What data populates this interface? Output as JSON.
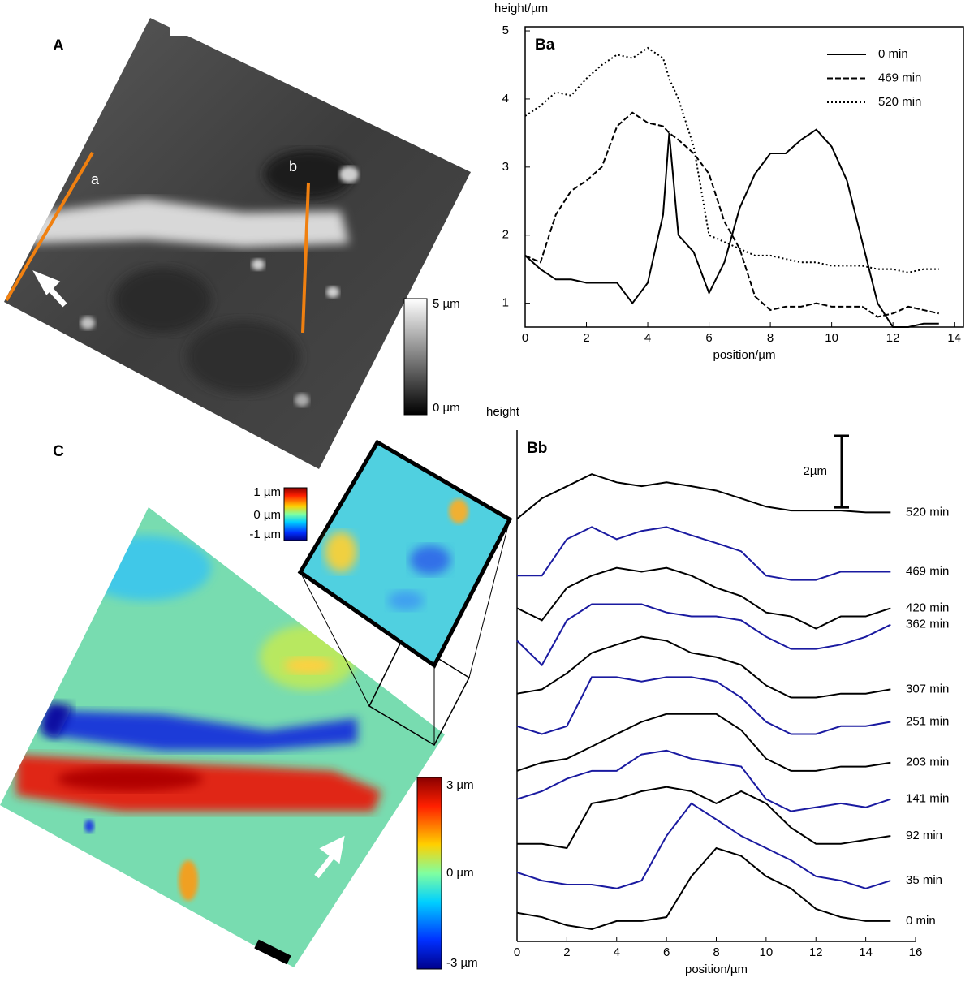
{
  "panel_a": {
    "label": "A",
    "lines": [
      "a",
      "b"
    ],
    "colorbar": [
      "5 µm",
      "0 µm"
    ]
  },
  "panel_c": {
    "label": "C",
    "inset_colorbar": [
      "1 µm",
      "0 µm",
      "-1 µm"
    ],
    "colorbar": [
      "3 µm",
      "0 µm",
      "-3 µm"
    ]
  },
  "chart_data": [
    {
      "type": "line",
      "title": "Ba",
      "y_label": "height/µm",
      "x_label": "position/µm",
      "frame": true,
      "legend": "upper right",
      "x": [
        0,
        0.5,
        1,
        1.5,
        2,
        2.5,
        3,
        3.5,
        4,
        4.5,
        4.7,
        5,
        5.5,
        6,
        6.5,
        7,
        7.5,
        8,
        8.5,
        9,
        9.5,
        10,
        10.5,
        11,
        11.5,
        12,
        12.5,
        13,
        13.5
      ],
      "xlim": [
        0,
        14.3
      ],
      "xticks": [
        0,
        2,
        4,
        6,
        8,
        10,
        12,
        14
      ],
      "ylim": [
        0.65,
        5.06
      ],
      "yticks": [
        1,
        2,
        3,
        4,
        5
      ],
      "series": [
        {
          "name": "0 min",
          "color": "#000000",
          "dash": "solid",
          "values": [
            1.7,
            1.5,
            1.35,
            1.35,
            1.3,
            1.3,
            1.3,
            1.0,
            1.3,
            2.3,
            3.5,
            2.0,
            1.75,
            1.15,
            1.6,
            2.4,
            2.9,
            3.2,
            3.2,
            3.4,
            3.55,
            3.3,
            2.8,
            1.9,
            1.0,
            0.65,
            0.65,
            0.7,
            0.7
          ]
        },
        {
          "name": "469 min",
          "color": "#000000",
          "dash": "dashed",
          "values": [
            1.7,
            1.6,
            2.3,
            2.65,
            2.8,
            3.0,
            3.6,
            3.8,
            3.65,
            3.6,
            3.5,
            3.4,
            3.2,
            2.9,
            2.2,
            1.8,
            1.1,
            0.9,
            0.95,
            0.95,
            1.0,
            0.95,
            0.95,
            0.95,
            0.8,
            0.85,
            0.95,
            0.9,
            0.85
          ]
        },
        {
          "name": "520 min",
          "color": "#000000",
          "dash": "dotted",
          "values": [
            3.75,
            3.9,
            4.1,
            4.05,
            4.3,
            4.5,
            4.65,
            4.6,
            4.75,
            4.6,
            4.3,
            4.0,
            3.3,
            2.0,
            1.9,
            1.8,
            1.7,
            1.7,
            1.65,
            1.6,
            1.6,
            1.55,
            1.55,
            1.55,
            1.5,
            1.5,
            1.45,
            1.5,
            1.5
          ]
        }
      ]
    },
    {
      "type": "line",
      "title": "Bb",
      "y_label": "height",
      "x_label": "position/µm",
      "frame": false,
      "legend": "line end",
      "x": [
        0,
        1,
        2,
        3,
        4,
        5,
        6,
        7,
        8,
        9,
        10,
        11,
        12,
        13,
        14,
        15
      ],
      "xlim": [
        0,
        16
      ],
      "xticks": [
        0,
        2,
        4,
        6,
        8,
        10,
        12,
        14,
        16
      ],
      "ylim": [
        0,
        14.3
      ],
      "scale_bar": {
        "value": 2,
        "label": "2µm"
      },
      "series": [
        {
          "name": "0 min",
          "color": "#000000",
          "values": [
            0.8,
            0.68,
            0.45,
            0.34,
            0.57,
            0.57,
            0.68,
            1.82,
            2.61,
            2.39,
            1.82,
            1.48,
            0.91,
            0.68,
            0.57,
            0.57
          ]
        },
        {
          "name": "35 min",
          "color": "#1a1aa0",
          "values": [
            1.93,
            1.7,
            1.59,
            1.59,
            1.48,
            1.7,
            2.95,
            3.86,
            3.41,
            2.95,
            2.61,
            2.27,
            1.82,
            1.7,
            1.48,
            1.7
          ]
        },
        {
          "name": "92 min",
          "color": "#000000",
          "values": [
            2.73,
            2.73,
            2.61,
            3.86,
            3.98,
            4.2,
            4.32,
            4.2,
            3.86,
            4.2,
            3.86,
            3.18,
            2.73,
            2.73,
            2.84,
            2.95
          ]
        },
        {
          "name": "141 min",
          "color": "#1a1aa0",
          "values": [
            3.98,
            4.2,
            4.55,
            4.77,
            4.77,
            5.23,
            5.34,
            5.11,
            5.0,
            4.89,
            3.98,
            3.64,
            3.75,
            3.86,
            3.75,
            3.98
          ]
        },
        {
          "name": "203 min",
          "color": "#000000",
          "values": [
            4.77,
            5.0,
            5.11,
            5.45,
            5.8,
            6.14,
            6.36,
            6.36,
            6.36,
            5.91,
            5.11,
            4.77,
            4.77,
            4.89,
            4.89,
            5.0
          ]
        },
        {
          "name": "251 min",
          "color": "#1a1aa0",
          "values": [
            6.02,
            5.8,
            6.02,
            7.39,
            7.39,
            7.27,
            7.39,
            7.39,
            7.27,
            6.82,
            6.14,
            5.8,
            5.8,
            6.02,
            6.02,
            6.14
          ]
        },
        {
          "name": "307 min",
          "color": "#000000",
          "values": [
            6.93,
            7.05,
            7.5,
            8.07,
            8.3,
            8.52,
            8.41,
            8.07,
            7.95,
            7.73,
            7.16,
            6.82,
            6.82,
            6.93,
            6.93,
            7.05
          ]
        },
        {
          "name": "362 min",
          "color": "#1a1aa0",
          "values": [
            8.41,
            7.73,
            8.98,
            9.43,
            9.43,
            9.43,
            9.2,
            9.09,
            9.09,
            8.98,
            8.52,
            8.18,
            8.18,
            8.3,
            8.52,
            8.86
          ]
        },
        {
          "name": "420 min",
          "color": "#000000",
          "values": [
            9.32,
            8.98,
            9.89,
            10.23,
            10.45,
            10.34,
            10.45,
            10.23,
            9.89,
            9.66,
            9.2,
            9.09,
            8.75,
            9.09,
            9.09,
            9.32
          ]
        },
        {
          "name": "469 min",
          "color": "#1a1aa0",
          "values": [
            10.23,
            10.23,
            11.25,
            11.59,
            11.25,
            11.48,
            11.59,
            11.36,
            11.14,
            10.91,
            10.23,
            10.11,
            10.11,
            10.34,
            10.34,
            10.34
          ]
        },
        {
          "name": "520 min",
          "color": "#000000",
          "values": [
            11.82,
            12.39,
            12.73,
            13.07,
            12.84,
            12.73,
            12.84,
            12.73,
            12.61,
            12.39,
            12.16,
            12.05,
            12.05,
            12.05,
            12.0,
            12.0
          ]
        }
      ]
    }
  ]
}
